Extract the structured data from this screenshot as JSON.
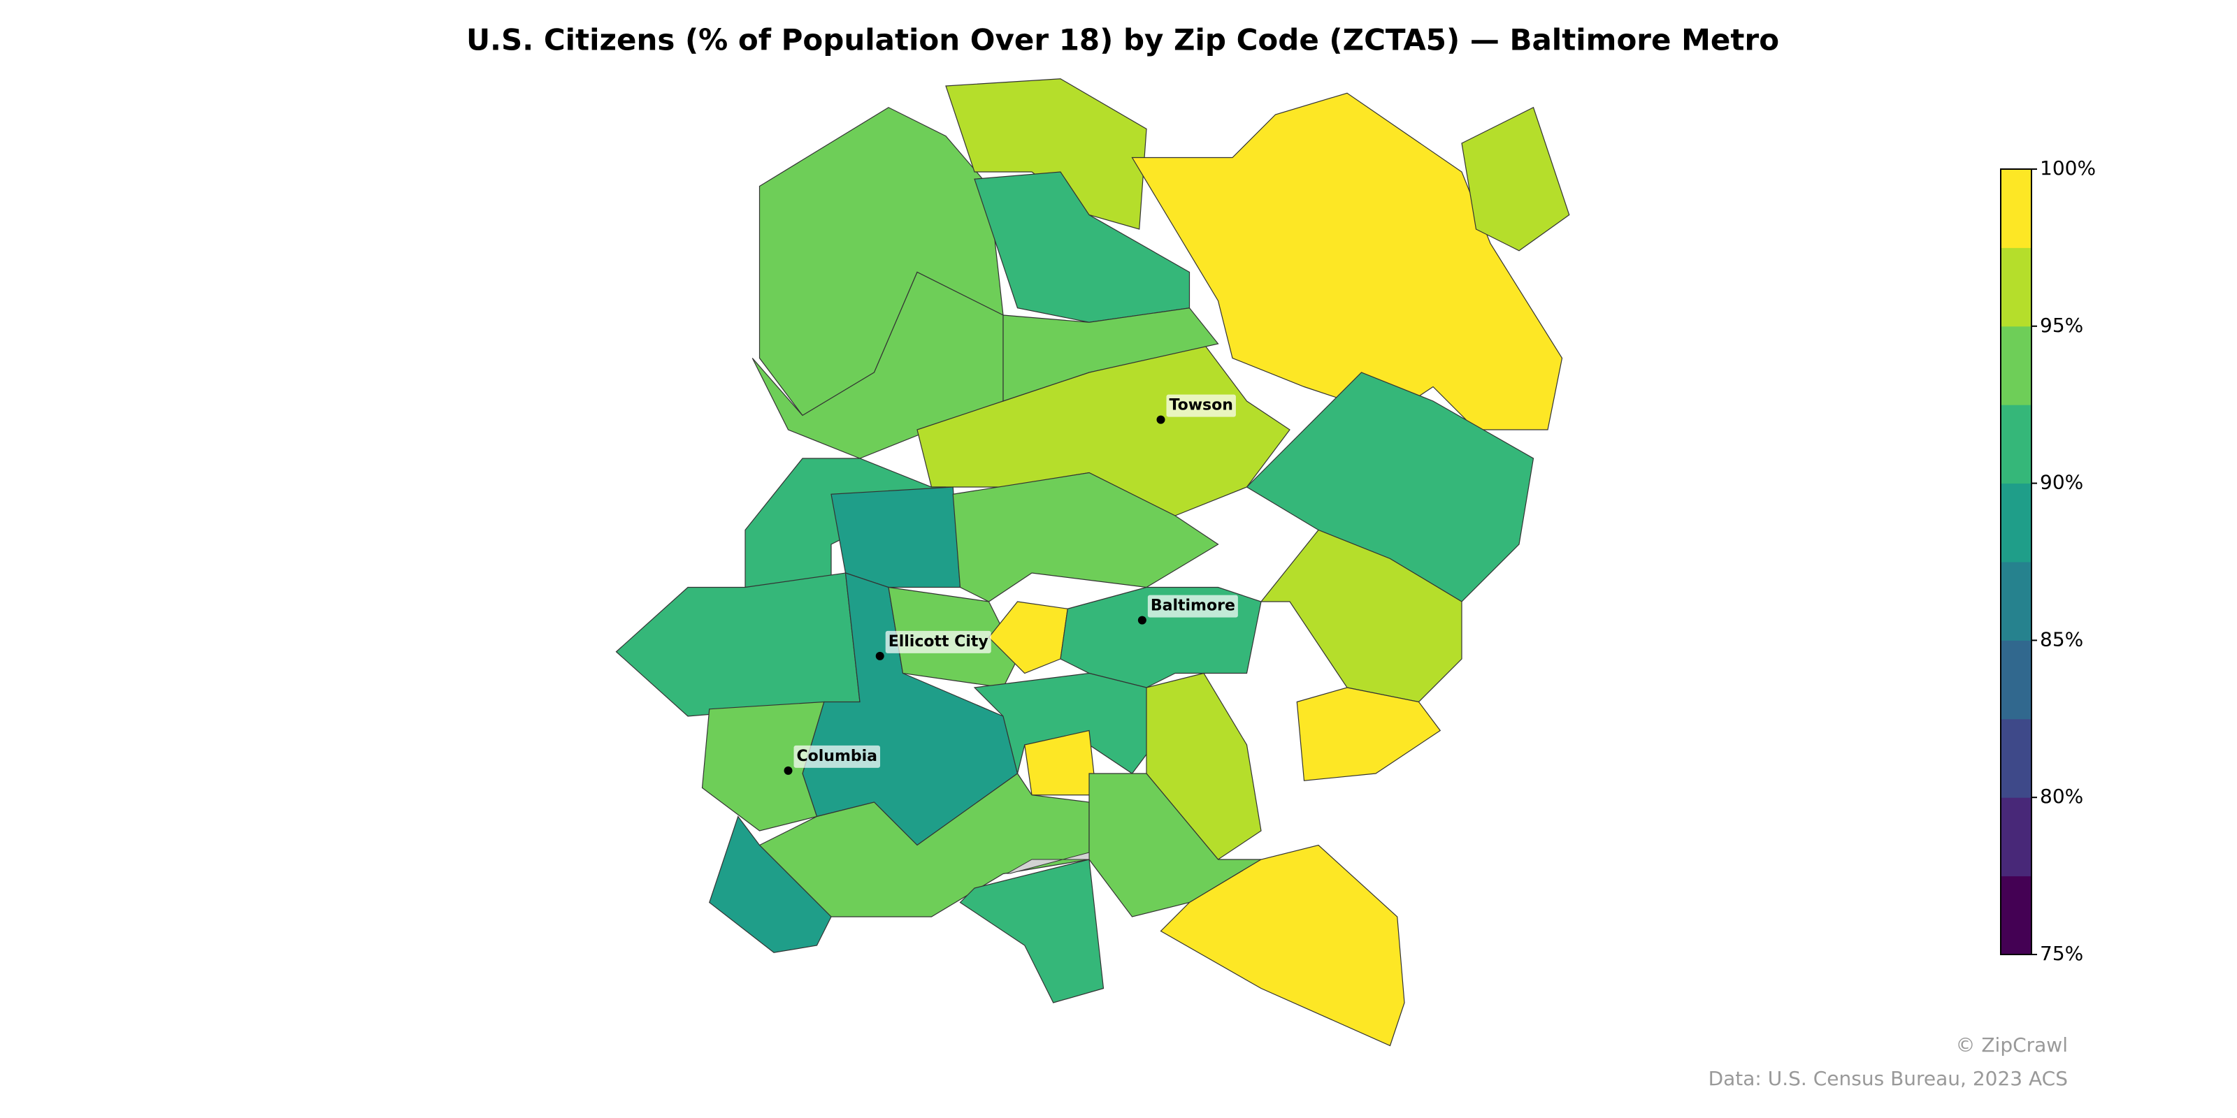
{
  "chart_data": {
    "type": "choropleth",
    "title": "U.S. Citizens (% of Population Over 18) by Zip Code (ZCTA5) — Baltimore Metro",
    "colors": [
      "#440154",
      "#482878",
      "#3e4989",
      "#31688e",
      "#26828e",
      "#1f9e89",
      "#35b779",
      "#6ece58",
      "#b5de2b",
      "#fde725"
    ],
    "no_data_color": "#d3d3d3",
    "ylim": [
      75,
      100
    ],
    "yticks": [
      {
        "value": 75,
        "label": "75%"
      },
      {
        "value": 80,
        "label": "80%"
      },
      {
        "value": 85,
        "label": "85%"
      },
      {
        "value": 90,
        "label": "90%"
      },
      {
        "value": 95,
        "label": "95%"
      },
      {
        "value": 100,
        "label": "100%"
      }
    ],
    "values": [
      93.75,
      96.25,
      91.25,
      98.75,
      96.25,
      93.75,
      96.25,
      93.75,
      91.25,
      88.75,
      91.25,
      93.75,
      88.75,
      93.75,
      98.75,
      91.25,
      91.25,
      96.25,
      98.75,
      93.75,
      91.25,
      98.75,
      93.75,
      88.75,
      91.25,
      96.25,
      93.75,
      98.75
    ],
    "cities": [
      "Towson",
      "Baltimore",
      "Ellicott City",
      "Columbia"
    ],
    "credit": "© ZipCrawl",
    "source": "Data: U.S. Census Bureau, 2023 ACS"
  }
}
